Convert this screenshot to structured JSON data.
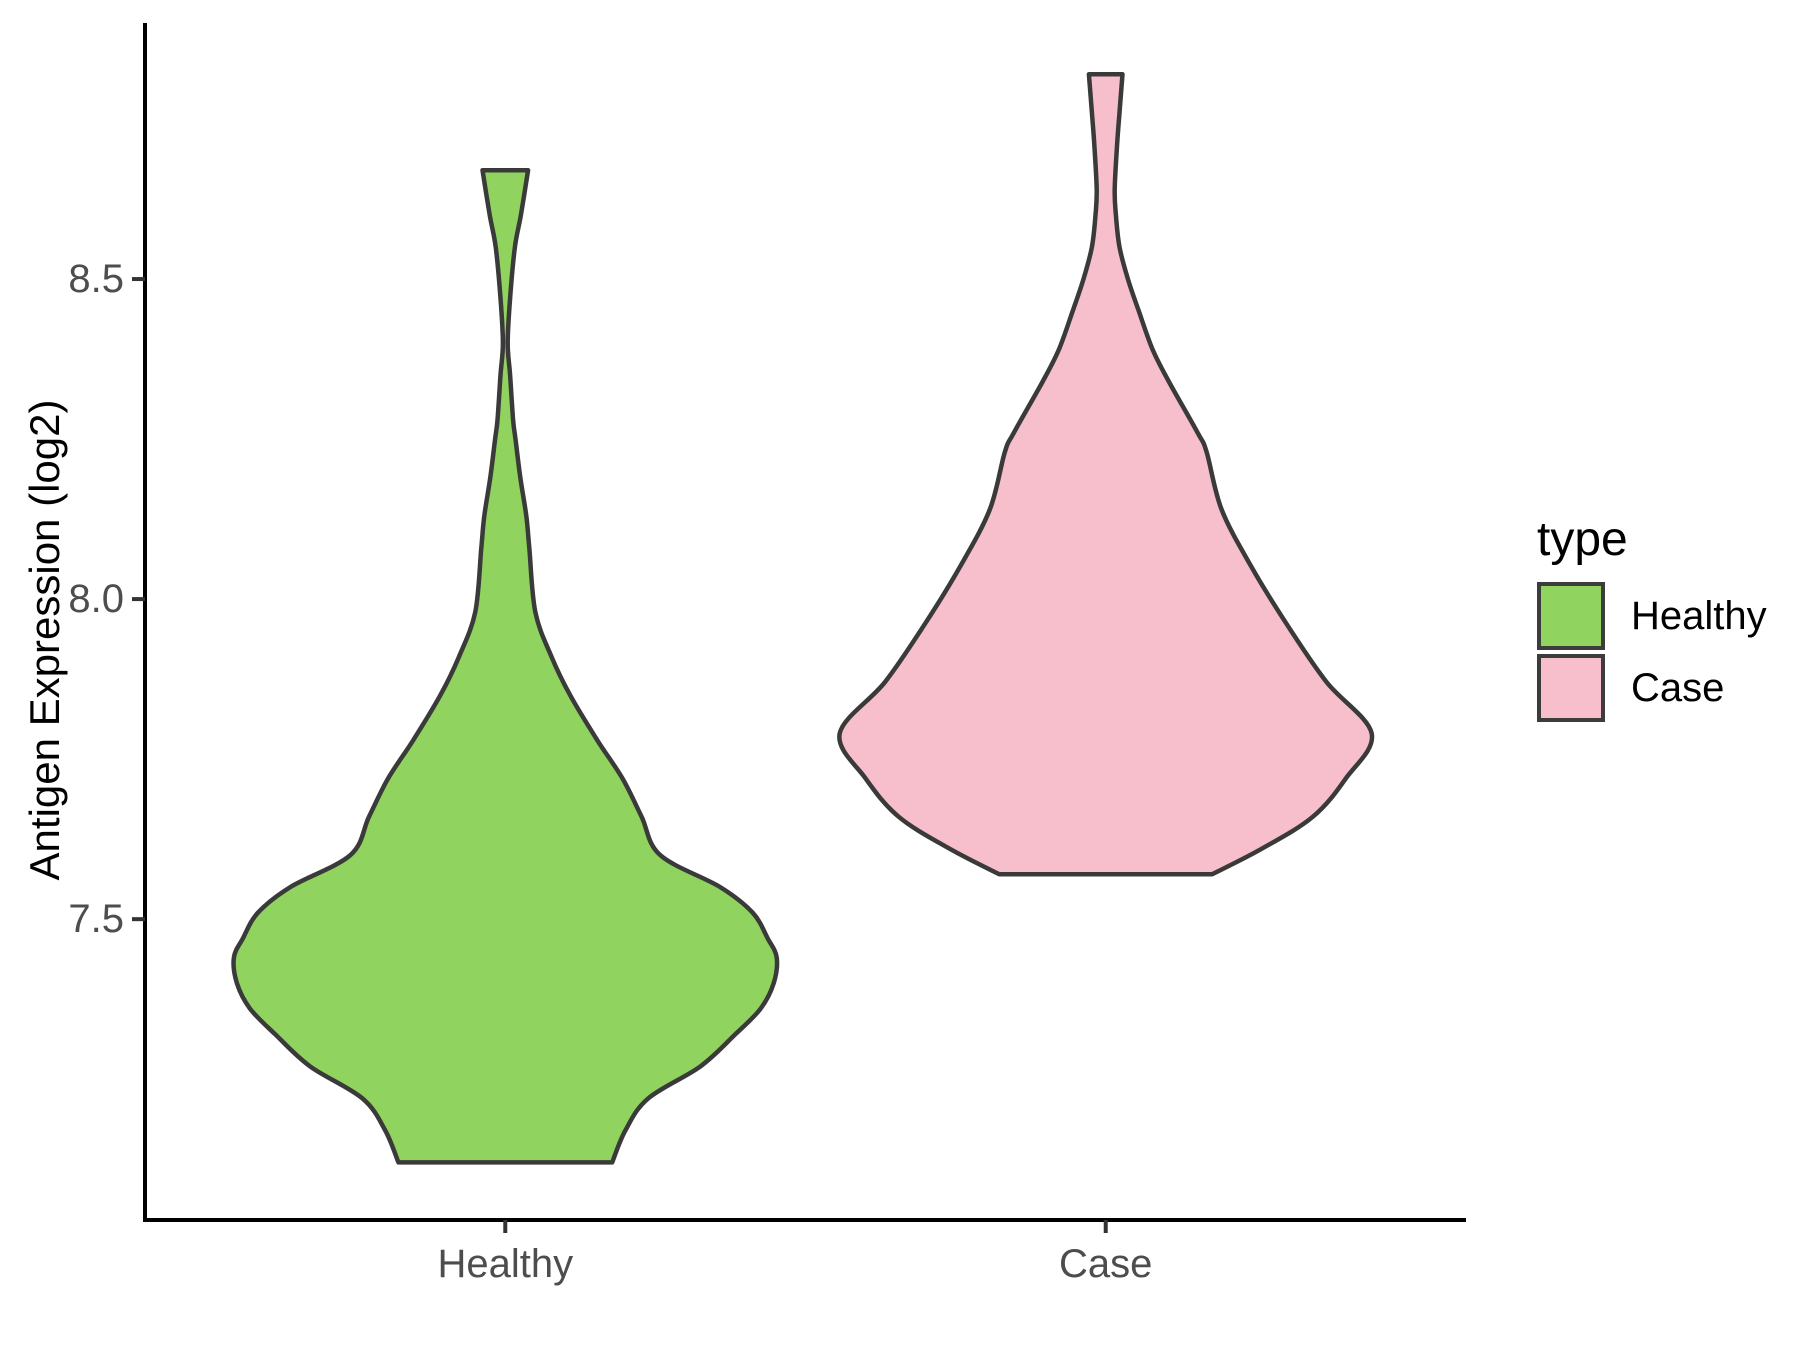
{
  "figure": {
    "background": "#FFFFFF"
  },
  "y_axis": {
    "title": "Antigen Expression (log2)",
    "ticks": [
      {
        "label": "7.5",
        "value": 7.5
      },
      {
        "label": "8.0",
        "value": 8.0
      },
      {
        "label": "8.5",
        "value": 8.5
      }
    ]
  },
  "x_axis": {
    "ticks": [
      {
        "label": "Healthy",
        "slot": 1
      },
      {
        "label": "Case",
        "slot": 2
      }
    ]
  },
  "legend": {
    "title": "type",
    "items": [
      {
        "label": "Healthy",
        "swatch_color": "#90D45F"
      },
      {
        "label": "Case",
        "swatch_color": "#F7BFCC"
      }
    ]
  },
  "style_colors": {
    "violin_outline": "#3A3A3A",
    "axis_line": "#000000",
    "tick_mark": "#333333",
    "tick_label": "#4D4D4D",
    "axis_title": "#000000",
    "legend_text": "#000000"
  },
  "chart_data": {
    "type": "violin",
    "title": "",
    "xlabel": "",
    "ylabel": "Antigen Expression (log2)",
    "categories": [
      "Healthy",
      "Case"
    ],
    "y_ticks": [
      7.5,
      8.0,
      8.5
    ],
    "ylim": [
      7.03,
      8.9
    ],
    "grid": "off",
    "legend_position": "right",
    "max_violin_halfwidth_slots": 0.45,
    "series": [
      {
        "name": "Healthy",
        "fill": "#90D45F",
        "center_slot": 1,
        "y_min": 7.12,
        "y_max": 8.67,
        "profile": [
          [
            8.67,
            0.038
          ],
          [
            8.6,
            0.026
          ],
          [
            8.55,
            0.016
          ],
          [
            8.47,
            0.008
          ],
          [
            8.4,
            0.004
          ],
          [
            8.35,
            0.008
          ],
          [
            8.28,
            0.013
          ],
          [
            8.25,
            0.017
          ],
          [
            8.19,
            0.025
          ],
          [
            8.13,
            0.035
          ],
          [
            8.08,
            0.04
          ],
          [
            7.98,
            0.05
          ],
          [
            7.91,
            0.077
          ],
          [
            7.85,
            0.108
          ],
          [
            7.78,
            0.153
          ],
          [
            7.72,
            0.195
          ],
          [
            7.66,
            0.227
          ],
          [
            7.6,
            0.258
          ],
          [
            7.55,
            0.358
          ],
          [
            7.51,
            0.412
          ],
          [
            7.47,
            0.437
          ],
          [
            7.44,
            0.452
          ],
          [
            7.4,
            0.447
          ],
          [
            7.36,
            0.425
          ],
          [
            7.32,
            0.383
          ],
          [
            7.27,
            0.325
          ],
          [
            7.22,
            0.238
          ],
          [
            7.17,
            0.2
          ],
          [
            7.12,
            0.178
          ]
        ]
      },
      {
        "name": "Case",
        "fill": "#F7BFCC",
        "center_slot": 2,
        "y_min": 7.57,
        "y_max": 8.82,
        "profile": [
          [
            8.82,
            0.028
          ],
          [
            8.76,
            0.023
          ],
          [
            8.71,
            0.019
          ],
          [
            8.64,
            0.015
          ],
          [
            8.6,
            0.017
          ],
          [
            8.55,
            0.023
          ],
          [
            8.5,
            0.037
          ],
          [
            8.45,
            0.055
          ],
          [
            8.39,
            0.078
          ],
          [
            8.34,
            0.105
          ],
          [
            8.26,
            0.153
          ],
          [
            8.23,
            0.168
          ],
          [
            8.14,
            0.193
          ],
          [
            8.05,
            0.243
          ],
          [
            7.96,
            0.302
          ],
          [
            7.87,
            0.368
          ],
          [
            7.79,
            0.443
          ],
          [
            7.72,
            0.4
          ],
          [
            7.66,
            0.345
          ],
          [
            7.61,
            0.26
          ],
          [
            7.57,
            0.177
          ]
        ]
      }
    ]
  }
}
